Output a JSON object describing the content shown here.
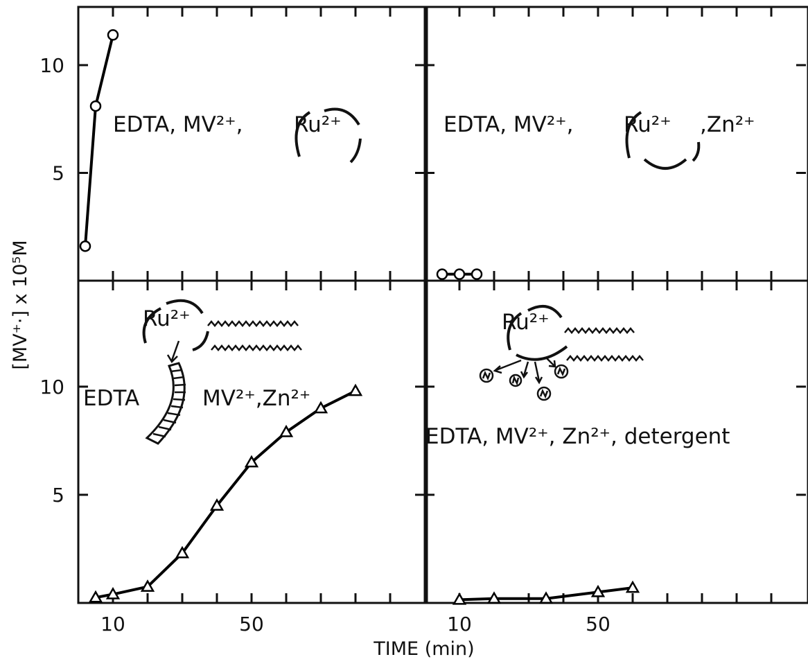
{
  "xlabel": "TIME (min)",
  "ylabel": "[MV⁺·] x 10⁵M",
  "chart_data": [
    {
      "type": "line",
      "marker": "circle",
      "color": "#000000",
      "x": [
        2,
        5,
        10
      ],
      "values": [
        1.6,
        8.1,
        11.4
      ],
      "xlim": [
        0,
        100
      ],
      "ylim": [
        0,
        12.7
      ],
      "yticks": [
        5,
        10
      ],
      "ytick_marks": [
        5,
        10
      ],
      "xtick_marks": [
        10,
        20,
        30,
        40,
        50,
        60,
        70,
        80,
        90
      ],
      "annotations": [
        "EDTA, MV²⁺,",
        "Ru²⁺"
      ]
    },
    {
      "type": "line",
      "marker": "circle",
      "color": "#000000",
      "x": [
        5,
        10,
        15
      ],
      "values": [
        0.3,
        0.3,
        0.3
      ],
      "xlim": [
        0,
        110
      ],
      "ylim": [
        0,
        12.7
      ],
      "ytick_marks": [
        5,
        10
      ],
      "xtick_marks": [
        10,
        20,
        30,
        40,
        50,
        60,
        70,
        80,
        90,
        100
      ],
      "annotations": [
        "EDTA, MV²⁺,",
        "Ru²⁺",
        ",Zn²⁺"
      ]
    },
    {
      "type": "line",
      "marker": "triangle",
      "color": "#000000",
      "x": [
        5,
        10,
        20,
        30,
        40,
        50,
        60,
        70,
        80
      ],
      "values": [
        0.25,
        0.4,
        0.75,
        2.3,
        4.5,
        6.5,
        7.9,
        9.0,
        9.8
      ],
      "xlim": [
        0,
        100
      ],
      "ylim": [
        0,
        14.9
      ],
      "xticks": [
        10,
        50
      ],
      "yticks": [
        5,
        10
      ],
      "ytick_marks": [
        5,
        10
      ],
      "xtick_marks": [
        10,
        20,
        30,
        40,
        50,
        60,
        70,
        80,
        90
      ],
      "annotations": [
        "Ru²⁺",
        "EDTA",
        "MV²⁺,Zn²⁺"
      ]
    },
    {
      "type": "line",
      "marker": "triangle",
      "color": "#000000",
      "x": [
        10,
        20,
        35,
        50,
        60
      ],
      "values": [
        0.15,
        0.2,
        0.2,
        0.5,
        0.7
      ],
      "xlim": [
        0,
        110
      ],
      "ylim": [
        0,
        14.9
      ],
      "xticks": [
        10,
        50
      ],
      "ytick_marks": [
        5,
        10
      ],
      "xtick_marks": [
        10,
        20,
        30,
        40,
        50,
        60,
        70,
        80,
        90,
        100
      ],
      "annotations": [
        "Ru²⁺",
        "EDTA, MV²⁺, Zn²⁺, detergent"
      ]
    }
  ]
}
